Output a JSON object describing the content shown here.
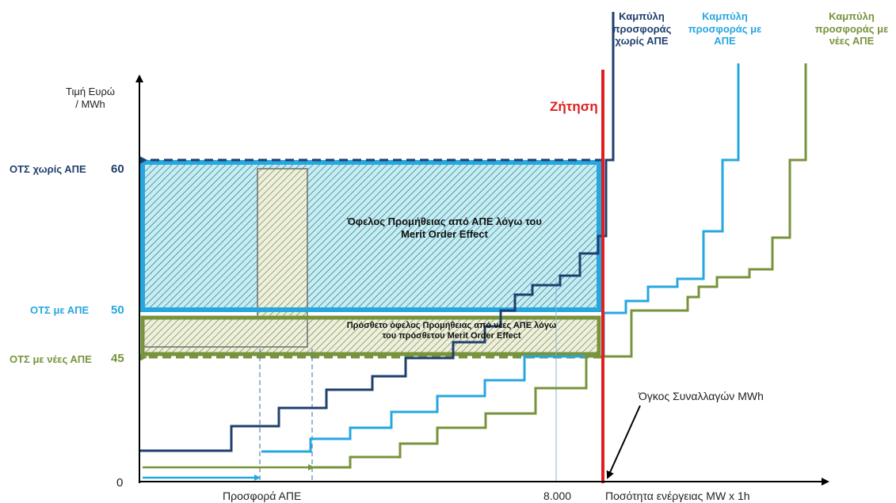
{
  "y_axis": {
    "title_line1": "Τιμή Ευρώ",
    "title_line2": "/ MWh",
    "tick_60": "60",
    "tick_50": "50",
    "tick_45": "45",
    "tick_0": "0"
  },
  "x_axis": {
    "title": "Ποσότητα ενέργειας MW x 1h",
    "tick_8000": "8.000",
    "res_offer_label": "Προσφορά ΑΠΕ"
  },
  "price_labels": {
    "without_res": "ΟΤΣ χωρίς ΑΠΕ",
    "with_res": "ΟΤΣ με ΑΠΕ",
    "with_new_res": "ΟΤΣ με νέες ΑΠΕ"
  },
  "demand": {
    "label": "Ζήτηση"
  },
  "curves": {
    "without_res": {
      "line1": "Καμπύλη",
      "line2": "προσφοράς",
      "line3": "χωρίς ΑΠΕ"
    },
    "with_res": {
      "line1": "Καμπύλη",
      "line2": "προσφοράς με",
      "line3": "ΑΠΕ"
    },
    "with_new_res": {
      "line1": "Καμπύλη",
      "line2": "προσφοράς με",
      "line3": "νέες ΑΠΕ"
    }
  },
  "areas": {
    "moe_line1": "Όφελος Προμήθειας από ΑΠΕ λόγω του",
    "moe_line2": "Merit Order Effect",
    "extra_line1": "Πρόσθετο όφελος Προμήθειας από νέες ΑΠΕ λόγω",
    "extra_line2": "του πρόσθετου Merit Order Effect"
  },
  "volume_label": "Όγκος Συναλλαγών MWh",
  "colors": {
    "without_res": "#1f3f6e",
    "with_res": "#27a7e0",
    "with_new_res": "#77933c",
    "demand": "#e02020"
  }
}
